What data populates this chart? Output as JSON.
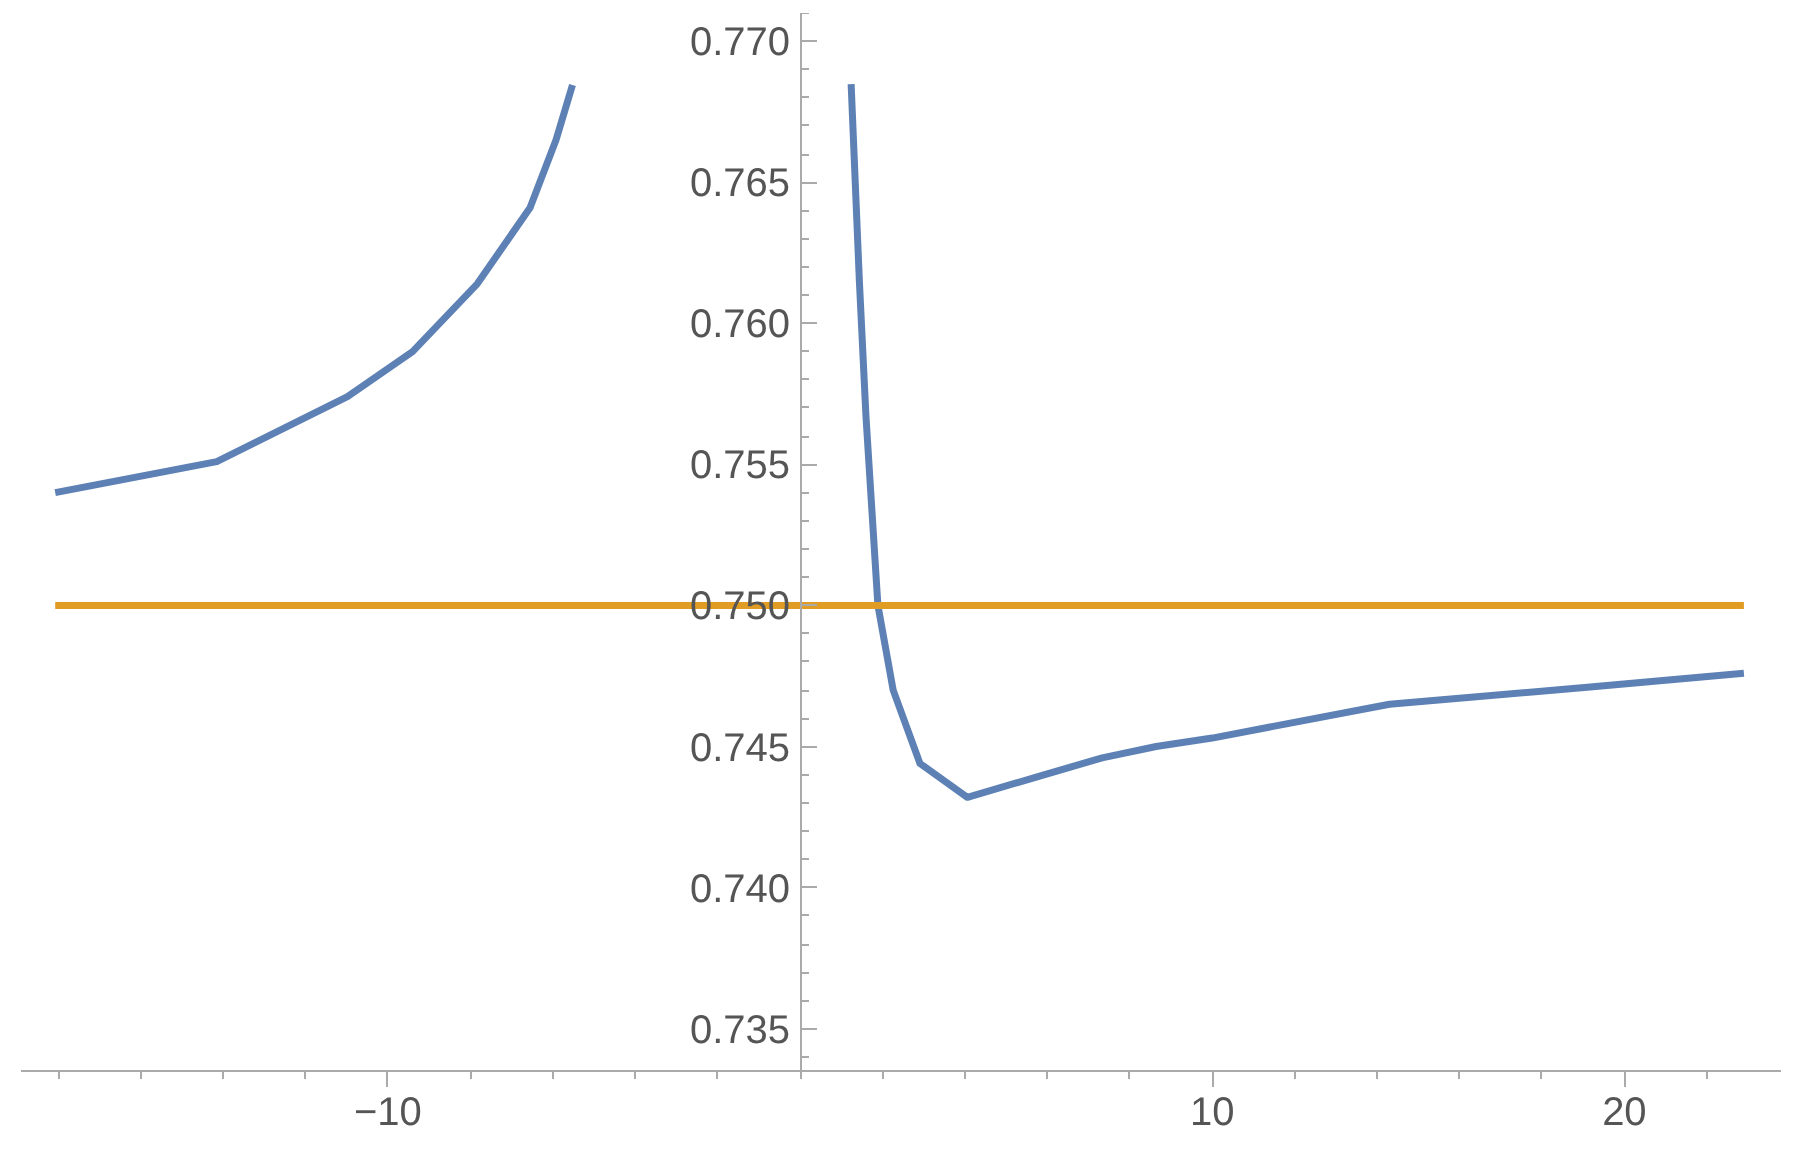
{
  "chart_data": {
    "type": "line",
    "xlim": [
      -18.9,
      23.8
    ],
    "ylim": [
      0.7335,
      0.771
    ],
    "xticks": [
      -10,
      10,
      20
    ],
    "yticks": [
      0.735,
      {
        "value": 0.74,
        "label": "0.740"
      },
      0.745,
      {
        "value": 0.75,
        "label": "0.750"
      },
      0.755,
      {
        "value": 0.76,
        "label": "0.760"
      },
      0.765,
      {
        "value": 0.77,
        "label": "0.770"
      }
    ],
    "grid": false,
    "series": [
      {
        "color": "#5e81b5",
        "x": [
          -18.07,
          -14.15,
          -10.98,
          -9.4,
          -7.83,
          -6.55,
          -5.92,
          -5.52,
          null,
          1.24,
          1.44,
          1.6,
          1.89,
          2.26,
          2.91,
          4.06,
          5.69,
          7.33,
          8.64,
          10.0,
          14.3,
          19.1,
          22.9
        ],
        "values": [
          0.754,
          0.7551,
          0.7574,
          0.759,
          0.7614,
          0.7641,
          0.7665,
          0.76845,
          null,
          0.76848,
          0.7615,
          0.7567,
          0.75,
          0.747,
          0.7444,
          0.7432,
          0.7439,
          0.7446,
          0.745,
          0.7453,
          0.7465,
          0.7471,
          0.7476
        ]
      },
      {
        "color": "#e19c24",
        "x": [
          -18.07,
          22.9
        ],
        "values": [
          0.75,
          0.75
        ]
      }
    ]
  }
}
